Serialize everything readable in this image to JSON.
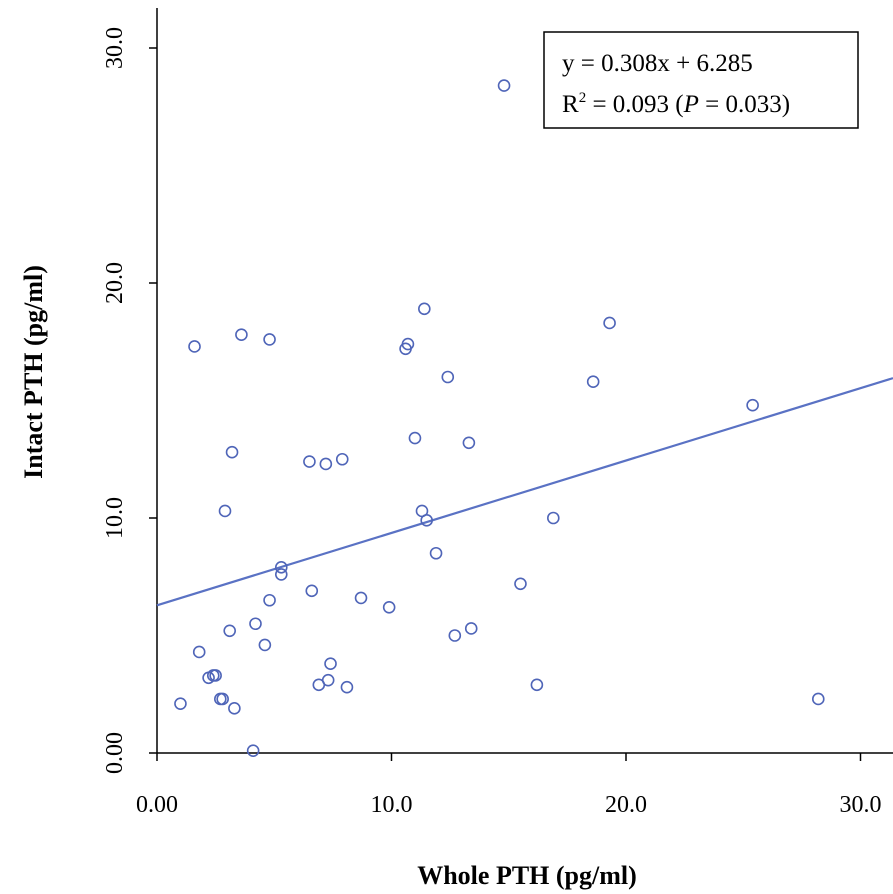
{
  "chart_data": {
    "type": "scatter",
    "title": "",
    "xlabel": "Whole PTH (pg/ml)",
    "ylabel": "Intact PTH (pg/ml)",
    "xlim": [
      0,
      31.5
    ],
    "ylim": [
      0,
      30.5
    ],
    "xticks": [
      {
        "value": 0,
        "label": "0.00"
      },
      {
        "value": 10,
        "label": "10.0"
      },
      {
        "value": 20,
        "label": "20.0"
      },
      {
        "value": 30,
        "label": "30.0"
      }
    ],
    "yticks": [
      {
        "value": 0,
        "label": "0.00"
      },
      {
        "value": 10,
        "label": "10.0"
      },
      {
        "value": 20,
        "label": "20.0"
      },
      {
        "value": 30,
        "label": "30.0"
      }
    ],
    "grid": false,
    "point_color": "#4f65b8",
    "line_color": "#5a72c4",
    "series": [
      {
        "points": [
          [
            1.0,
            2.1
          ],
          [
            1.6,
            17.3
          ],
          [
            1.8,
            4.3
          ],
          [
            2.2,
            3.2
          ],
          [
            2.4,
            3.3
          ],
          [
            2.5,
            3.3
          ],
          [
            2.7,
            2.3
          ],
          [
            2.8,
            2.3
          ],
          [
            2.9,
            10.3
          ],
          [
            3.1,
            5.2
          ],
          [
            3.2,
            12.8
          ],
          [
            3.3,
            1.9
          ],
          [
            3.6,
            17.8
          ],
          [
            4.1,
            0.1
          ],
          [
            4.2,
            5.5
          ],
          [
            4.6,
            4.6
          ],
          [
            4.8,
            6.5
          ],
          [
            4.8,
            17.6
          ],
          [
            5.3,
            7.9
          ],
          [
            5.3,
            7.6
          ],
          [
            6.5,
            12.4
          ],
          [
            6.6,
            6.9
          ],
          [
            6.9,
            2.9
          ],
          [
            7.2,
            12.3
          ],
          [
            7.3,
            3.1
          ],
          [
            7.4,
            3.8
          ],
          [
            7.9,
            12.5
          ],
          [
            8.1,
            2.8
          ],
          [
            8.7,
            6.6
          ],
          [
            9.9,
            6.2
          ],
          [
            10.6,
            17.2
          ],
          [
            10.7,
            17.4
          ],
          [
            11.0,
            13.4
          ],
          [
            11.3,
            10.3
          ],
          [
            11.4,
            18.9
          ],
          [
            11.5,
            9.9
          ],
          [
            11.9,
            8.5
          ],
          [
            12.4,
            16.0
          ],
          [
            12.7,
            5.0
          ],
          [
            13.3,
            13.2
          ],
          [
            13.4,
            5.3
          ],
          [
            14.8,
            28.4
          ],
          [
            15.5,
            7.2
          ],
          [
            16.2,
            2.9
          ],
          [
            16.9,
            10.0
          ],
          [
            18.6,
            15.8
          ],
          [
            19.3,
            18.3
          ],
          [
            25.4,
            14.8
          ],
          [
            28.2,
            2.3
          ]
        ]
      }
    ],
    "trendline": {
      "slope": 0.308,
      "intercept": 6.285
    },
    "annotation": {
      "line1": "y = 0.308x + 6.285",
      "r_label": "R",
      "r_sup": "2",
      "r_mid": " = 0.093 (",
      "p_label": "P",
      "p_rest": " = 0.033)"
    }
  }
}
